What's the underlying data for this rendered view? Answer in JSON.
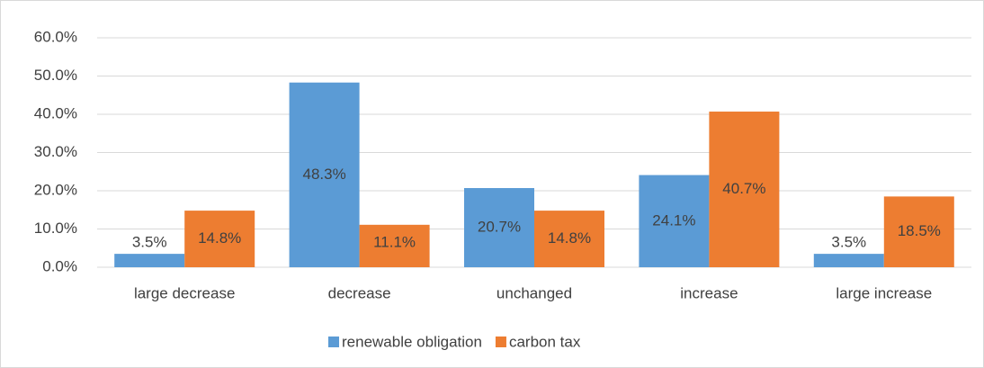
{
  "chart_data": {
    "type": "bar",
    "categories": [
      "large decrease",
      "decrease",
      "unchanged",
      "increase",
      "large increase"
    ],
    "series": [
      {
        "name": "renewable obligation",
        "color": "#5b9bd5",
        "values": [
          3.5,
          48.3,
          20.7,
          24.1,
          3.5
        ],
        "value_labels": [
          "3.5%",
          "48.3%",
          "20.7%",
          "24.1%",
          "3.5%"
        ]
      },
      {
        "name": "carbon tax",
        "color": "#ed7d31",
        "values": [
          14.8,
          11.1,
          14.8,
          40.7,
          18.5
        ],
        "value_labels": [
          "14.8%",
          "11.1%",
          "14.8%",
          "40.7%",
          "18.5%"
        ]
      }
    ],
    "ylim": [
      0,
      60
    ],
    "yticks": [
      {
        "value": 0,
        "label": "0.0%"
      },
      {
        "value": 10,
        "label": "10.0%"
      },
      {
        "value": 20,
        "label": "20.0%"
      },
      {
        "value": 30,
        "label": "30.0%"
      },
      {
        "value": 40,
        "label": "40.0%"
      },
      {
        "value": 50,
        "label": "50.0%"
      },
      {
        "value": 60,
        "label": "60.0%"
      }
    ],
    "grid": true,
    "legend": "bottom"
  }
}
